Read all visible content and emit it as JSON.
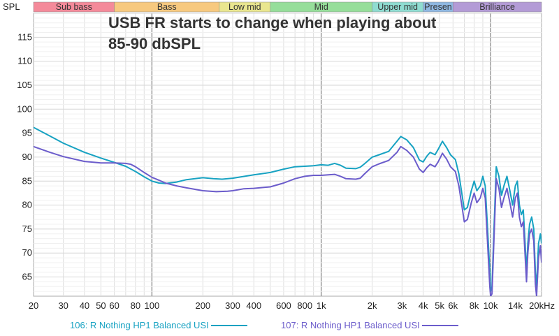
{
  "chart_data": {
    "type": "line",
    "ylabel": "SPL",
    "xunit": "kHz",
    "xscale": "log",
    "xlim": [
      20,
      20000
    ],
    "ylim": [
      61,
      120
    ],
    "yticks": [
      65,
      70,
      75,
      80,
      85,
      90,
      95,
      100,
      105,
      110,
      115
    ],
    "xticks": [
      {
        "v": 20,
        "label": "20"
      },
      {
        "v": 30,
        "label": "30"
      },
      {
        "v": 40,
        "label": "40"
      },
      {
        "v": 50,
        "label": "50"
      },
      {
        "v": 60,
        "label": "60"
      },
      {
        "v": 80,
        "label": "80"
      },
      {
        "v": 100,
        "label": "100"
      },
      {
        "v": 200,
        "label": "200"
      },
      {
        "v": 300,
        "label": "300"
      },
      {
        "v": 400,
        "label": "400"
      },
      {
        "v": 600,
        "label": "600"
      },
      {
        "v": 800,
        "label": "800"
      },
      {
        "v": 1000,
        "label": "1k"
      },
      {
        "v": 2000,
        "label": "2k"
      },
      {
        "v": 3000,
        "label": "3k"
      },
      {
        "v": 4000,
        "label": "4k"
      },
      {
        "v": 5000,
        "label": "5k"
      },
      {
        "v": 6000,
        "label": "6k"
      },
      {
        "v": 8000,
        "label": "8k"
      },
      {
        "v": 10000,
        "label": "10k"
      },
      {
        "v": 14000,
        "label": "14k"
      },
      {
        "v": 20000,
        "label": "20kHz"
      }
    ],
    "bands": [
      {
        "label": "Sub bass",
        "from": 20,
        "to": 60,
        "color": "#f48a9a"
      },
      {
        "label": "Bass",
        "from": 60,
        "to": 250,
        "color": "#f7c97f"
      },
      {
        "label": "Low mid",
        "from": 250,
        "to": 500,
        "color": "#e9e68f"
      },
      {
        "label": "Mid",
        "from": 500,
        "to": 2000,
        "color": "#96de9a"
      },
      {
        "label": "Upper mid",
        "from": 2000,
        "to": 4000,
        "color": "#8fdcd1"
      },
      {
        "label": "Presen",
        "from": 4000,
        "to": 6000,
        "color": "#8fb8e2"
      },
      {
        "label": "Brilliance",
        "from": 6000,
        "to": 20000,
        "color": "#b39bd6"
      }
    ],
    "annotation": {
      "line1": "USB FR starts to change when playing about",
      "line2": "85-90 dbSPL"
    },
    "series": [
      {
        "name": "106: R Nothing HP1 Balanced USI",
        "color": "#17a2c2",
        "points": [
          [
            20,
            96.2
          ],
          [
            25,
            94.4
          ],
          [
            30,
            92.9
          ],
          [
            40,
            91.0
          ],
          [
            50,
            89.8
          ],
          [
            60,
            88.9
          ],
          [
            70,
            88.1
          ],
          [
            80,
            87.0
          ],
          [
            90,
            85.9
          ],
          [
            100,
            85.0
          ],
          [
            110,
            84.6
          ],
          [
            120,
            84.5
          ],
          [
            140,
            84.8
          ],
          [
            160,
            85.3
          ],
          [
            200,
            85.7
          ],
          [
            230,
            85.5
          ],
          [
            260,
            85.4
          ],
          [
            300,
            85.6
          ],
          [
            400,
            86.3
          ],
          [
            500,
            86.8
          ],
          [
            600,
            87.5
          ],
          [
            700,
            88.0
          ],
          [
            800,
            88.1
          ],
          [
            900,
            88.2
          ],
          [
            1000,
            88.4
          ],
          [
            1100,
            88.3
          ],
          [
            1200,
            88.7
          ],
          [
            1300,
            88.3
          ],
          [
            1400,
            87.7
          ],
          [
            1600,
            87.6
          ],
          [
            1700,
            87.9
          ],
          [
            1800,
            88.6
          ],
          [
            2000,
            90.0
          ],
          [
            2200,
            90.5
          ],
          [
            2500,
            91.2
          ],
          [
            2800,
            93.3
          ],
          [
            2950,
            94.3
          ],
          [
            3200,
            93.6
          ],
          [
            3500,
            92.0
          ],
          [
            3800,
            89.4
          ],
          [
            4000,
            89.0
          ],
          [
            4200,
            90.2
          ],
          [
            4400,
            91.0
          ],
          [
            4700,
            90.5
          ],
          [
            4900,
            91.6
          ],
          [
            5200,
            93.3
          ],
          [
            5500,
            92.0
          ],
          [
            5800,
            90.5
          ],
          [
            6200,
            89.5
          ],
          [
            6500,
            86.5
          ],
          [
            7000,
            79.0
          ],
          [
            7300,
            79.5
          ],
          [
            7700,
            83.0
          ],
          [
            8000,
            85.0
          ],
          [
            8300,
            83.0
          ],
          [
            8700,
            84.0
          ],
          [
            9000,
            86.0
          ],
          [
            9300,
            84.0
          ],
          [
            9600,
            75.0
          ],
          [
            9900,
            66.0
          ],
          [
            10000,
            62.0
          ],
          [
            10200,
            63.0
          ],
          [
            10500,
            76.0
          ],
          [
            10800,
            88.0
          ],
          [
            11200,
            86.0
          ],
          [
            11600,
            82.0
          ],
          [
            12000,
            84.0
          ],
          [
            12500,
            86.0
          ],
          [
            13000,
            83.0
          ],
          [
            13500,
            80.0
          ],
          [
            14000,
            84.0
          ],
          [
            14400,
            85.0
          ],
          [
            14800,
            80.0
          ],
          [
            15200,
            78.0
          ],
          [
            15600,
            79.0
          ],
          [
            16000,
            72.0
          ],
          [
            16300,
            66.0
          ],
          [
            16600,
            72.0
          ],
          [
            17000,
            76.0
          ],
          [
            17500,
            77.5
          ],
          [
            18000,
            75.0
          ],
          [
            18400,
            66.0
          ],
          [
            18700,
            63.0
          ],
          [
            19200,
            72.0
          ],
          [
            19700,
            74.0
          ],
          [
            20000,
            72.0
          ]
        ]
      },
      {
        "name": "107: R Nothing HP1 Balanced USI",
        "color": "#6b5ccb",
        "points": [
          [
            20,
            92.2
          ],
          [
            25,
            91.0
          ],
          [
            30,
            90.1
          ],
          [
            40,
            89.1
          ],
          [
            50,
            88.8
          ],
          [
            60,
            88.8
          ],
          [
            70,
            88.7
          ],
          [
            75,
            88.5
          ],
          [
            80,
            88.0
          ],
          [
            90,
            86.8
          ],
          [
            100,
            85.8
          ],
          [
            110,
            85.2
          ],
          [
            120,
            84.6
          ],
          [
            140,
            84.0
          ],
          [
            160,
            83.6
          ],
          [
            200,
            83.0
          ],
          [
            240,
            82.8
          ],
          [
            280,
            82.9
          ],
          [
            300,
            83.0
          ],
          [
            350,
            83.4
          ],
          [
            400,
            83.5
          ],
          [
            500,
            83.8
          ],
          [
            600,
            84.6
          ],
          [
            700,
            85.5
          ],
          [
            800,
            86.0
          ],
          [
            900,
            86.2
          ],
          [
            1000,
            86.2
          ],
          [
            1200,
            86.4
          ],
          [
            1300,
            86.0
          ],
          [
            1400,
            85.5
          ],
          [
            1600,
            85.4
          ],
          [
            1700,
            85.6
          ],
          [
            1800,
            86.5
          ],
          [
            2000,
            88.0
          ],
          [
            2200,
            88.6
          ],
          [
            2500,
            89.3
          ],
          [
            2800,
            91.0
          ],
          [
            2950,
            92.2
          ],
          [
            3200,
            91.4
          ],
          [
            3500,
            90.0
          ],
          [
            3800,
            87.5
          ],
          [
            4000,
            86.8
          ],
          [
            4200,
            87.8
          ],
          [
            4400,
            88.5
          ],
          [
            4700,
            88.0
          ],
          [
            4900,
            89.0
          ],
          [
            5200,
            90.8
          ],
          [
            5500,
            89.6
          ],
          [
            5800,
            88.0
          ],
          [
            6200,
            87.0
          ],
          [
            6500,
            84.0
          ],
          [
            7000,
            76.5
          ],
          [
            7300,
            77.0
          ],
          [
            7700,
            80.5
          ],
          [
            8000,
            82.5
          ],
          [
            8300,
            80.5
          ],
          [
            8700,
            81.5
          ],
          [
            9000,
            83.5
          ],
          [
            9300,
            81.5
          ],
          [
            9600,
            72.0
          ],
          [
            9900,
            63.0
          ],
          [
            10000,
            61.0
          ],
          [
            10200,
            61.5
          ],
          [
            10500,
            74.0
          ],
          [
            10800,
            85.5
          ],
          [
            11200,
            83.5
          ],
          [
            11600,
            79.5
          ],
          [
            12000,
            81.5
          ],
          [
            12500,
            83.5
          ],
          [
            13000,
            80.5
          ],
          [
            13500,
            77.5
          ],
          [
            14000,
            81.5
          ],
          [
            14400,
            82.5
          ],
          [
            14800,
            77.5
          ],
          [
            15200,
            75.5
          ],
          [
            15600,
            76.5
          ],
          [
            16000,
            69.5
          ],
          [
            16300,
            64.0
          ],
          [
            16600,
            70.0
          ],
          [
            17000,
            74.0
          ],
          [
            17500,
            75.0
          ],
          [
            18000,
            72.5
          ],
          [
            18400,
            63.5
          ],
          [
            18700,
            61.0
          ],
          [
            19200,
            69.0
          ],
          [
            19700,
            71.5
          ],
          [
            20000,
            68.0
          ]
        ]
      }
    ]
  }
}
